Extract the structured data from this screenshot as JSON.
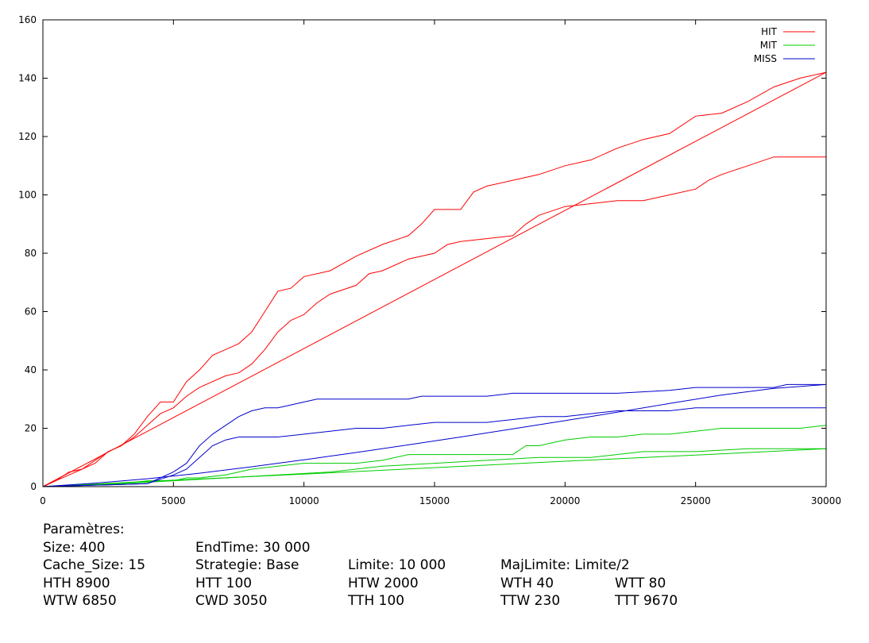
{
  "chart_data": {
    "type": "line",
    "title": "",
    "xlabel": "",
    "ylabel": "",
    "xlim": [
      0,
      30000
    ],
    "ylim": [
      0,
      160
    ],
    "xticks": [
      0,
      5000,
      10000,
      15000,
      20000,
      25000,
      30000
    ],
    "xtick_labels": [
      "0",
      "5000",
      "10000",
      "15000",
      "20000",
      "25000",
      "30000"
    ],
    "yticks": [
      0,
      20,
      40,
      60,
      80,
      100,
      120,
      140,
      160
    ],
    "ytick_labels": [
      "0",
      "20",
      "40",
      "60",
      "80",
      "100",
      "120",
      "140",
      "160"
    ],
    "grid": false,
    "legend_position": "top-right",
    "series": [
      {
        "name": "HIT",
        "color": "#ff0000",
        "label_shown": true,
        "points": [
          [
            0,
            0
          ],
          [
            500,
            2
          ],
          [
            1000,
            5
          ],
          [
            1500,
            6
          ],
          [
            2000,
            8
          ],
          [
            2500,
            12
          ],
          [
            3000,
            14
          ],
          [
            3500,
            18
          ],
          [
            4000,
            24
          ],
          [
            4500,
            29
          ],
          [
            5000,
            29
          ],
          [
            5500,
            36
          ],
          [
            6000,
            40
          ],
          [
            6500,
            45
          ],
          [
            7000,
            47
          ],
          [
            7500,
            49
          ],
          [
            8000,
            53
          ],
          [
            8500,
            60
          ],
          [
            9000,
            67
          ],
          [
            9500,
            68
          ],
          [
            10000,
            72
          ],
          [
            11000,
            74
          ],
          [
            12000,
            79
          ],
          [
            13000,
            83
          ],
          [
            14000,
            86
          ],
          [
            14500,
            90
          ],
          [
            15000,
            95
          ],
          [
            16000,
            95
          ],
          [
            16500,
            101
          ],
          [
            17000,
            103
          ],
          [
            18000,
            105
          ],
          [
            19000,
            107
          ],
          [
            20000,
            110
          ],
          [
            21000,
            112
          ],
          [
            22000,
            116
          ],
          [
            23000,
            119
          ],
          [
            24000,
            121
          ],
          [
            25000,
            127
          ],
          [
            26000,
            128
          ],
          [
            27000,
            132
          ],
          [
            28000,
            137
          ],
          [
            29000,
            140
          ],
          [
            30000,
            142
          ]
        ]
      },
      {
        "name": "",
        "color": "#ff0000",
        "label_shown": false,
        "points": [
          [
            0,
            0
          ],
          [
            500,
            2
          ],
          [
            1000,
            4
          ],
          [
            1500,
            6
          ],
          [
            2000,
            9
          ],
          [
            2500,
            12
          ],
          [
            3000,
            14
          ],
          [
            3500,
            17
          ],
          [
            4000,
            21
          ],
          [
            4500,
            25
          ],
          [
            5000,
            27
          ],
          [
            5500,
            31
          ],
          [
            6000,
            34
          ],
          [
            6500,
            36
          ],
          [
            7000,
            38
          ],
          [
            7500,
            39
          ],
          [
            8000,
            42
          ],
          [
            8500,
            47
          ],
          [
            9000,
            53
          ],
          [
            9500,
            57
          ],
          [
            10000,
            59
          ],
          [
            10500,
            63
          ],
          [
            11000,
            66
          ],
          [
            12000,
            69
          ],
          [
            12500,
            73
          ],
          [
            13000,
            74
          ],
          [
            14000,
            78
          ],
          [
            15000,
            80
          ],
          [
            15500,
            83
          ],
          [
            16000,
            84
          ],
          [
            17000,
            85
          ],
          [
            18000,
            86
          ],
          [
            18500,
            90
          ],
          [
            19000,
            93
          ],
          [
            20000,
            96
          ],
          [
            21000,
            97
          ],
          [
            22000,
            98
          ],
          [
            23000,
            98
          ],
          [
            24000,
            100
          ],
          [
            25000,
            102
          ],
          [
            25500,
            105
          ],
          [
            26000,
            107
          ],
          [
            27000,
            110
          ],
          [
            28000,
            113
          ],
          [
            30000,
            113
          ]
        ]
      },
      {
        "name": "",
        "color": "#ff0000",
        "label_shown": false,
        "points": [
          [
            0,
            0
          ],
          [
            30000,
            142
          ]
        ]
      },
      {
        "name": "MIT",
        "color": "#00cc00",
        "label_shown": true,
        "points": [
          [
            0,
            0
          ],
          [
            3000,
            1
          ],
          [
            4000,
            2
          ],
          [
            5000,
            2
          ],
          [
            5500,
            3
          ],
          [
            6000,
            3
          ],
          [
            7000,
            4
          ],
          [
            8000,
            6
          ],
          [
            9000,
            7
          ],
          [
            10000,
            8
          ],
          [
            11000,
            8
          ],
          [
            12000,
            8
          ],
          [
            13000,
            9
          ],
          [
            14000,
            11
          ],
          [
            15000,
            11
          ],
          [
            16000,
            11
          ],
          [
            17000,
            11
          ],
          [
            18000,
            11
          ],
          [
            18500,
            14
          ],
          [
            19000,
            14
          ],
          [
            20000,
            16
          ],
          [
            21000,
            17
          ],
          [
            22000,
            17
          ],
          [
            23000,
            18
          ],
          [
            24000,
            18
          ],
          [
            25000,
            19
          ],
          [
            26000,
            20
          ],
          [
            27000,
            20
          ],
          [
            28000,
            20
          ],
          [
            29000,
            20
          ],
          [
            30000,
            21
          ]
        ]
      },
      {
        "name": "",
        "color": "#00cc00",
        "label_shown": false,
        "points": [
          [
            0,
            0
          ],
          [
            3000,
            1
          ],
          [
            5000,
            2
          ],
          [
            7000,
            3
          ],
          [
            9000,
            4
          ],
          [
            11000,
            5
          ],
          [
            13000,
            7
          ],
          [
            15000,
            8
          ],
          [
            17000,
            9
          ],
          [
            19000,
            10
          ],
          [
            21000,
            10
          ],
          [
            23000,
            12
          ],
          [
            25000,
            12
          ],
          [
            27000,
            13
          ],
          [
            30000,
            13
          ]
        ]
      },
      {
        "name": "",
        "color": "#00cc00",
        "label_shown": false,
        "points": [
          [
            0,
            0
          ],
          [
            5000,
            2.2
          ],
          [
            10000,
            4.3
          ],
          [
            15000,
            6.5
          ],
          [
            20000,
            8.7
          ],
          [
            25000,
            10.8
          ],
          [
            30000,
            13
          ]
        ]
      },
      {
        "name": "MISS",
        "color": "#0000cc",
        "label_shown": true,
        "points": [
          [
            0,
            0
          ],
          [
            4000,
            1
          ],
          [
            4500,
            3
          ],
          [
            5000,
            5
          ],
          [
            5500,
            8
          ],
          [
            6000,
            14
          ],
          [
            6500,
            18
          ],
          [
            7000,
            21
          ],
          [
            7500,
            24
          ],
          [
            8000,
            26
          ],
          [
            8500,
            27
          ],
          [
            9000,
            27
          ],
          [
            9500,
            28
          ],
          [
            10000,
            29
          ],
          [
            10500,
            30
          ],
          [
            12000,
            30
          ],
          [
            13000,
            30
          ],
          [
            14000,
            30
          ],
          [
            14500,
            31
          ],
          [
            16000,
            31
          ],
          [
            17000,
            31
          ],
          [
            18000,
            32
          ],
          [
            20000,
            32
          ],
          [
            22000,
            32
          ],
          [
            24000,
            33
          ],
          [
            25000,
            34
          ],
          [
            26000,
            34
          ],
          [
            28000,
            34
          ],
          [
            28500,
            35
          ],
          [
            30000,
            35
          ]
        ]
      },
      {
        "name": "",
        "color": "#0000cc",
        "label_shown": false,
        "points": [
          [
            0,
            0
          ],
          [
            4000,
            1
          ],
          [
            5000,
            4
          ],
          [
            5500,
            6
          ],
          [
            6000,
            10
          ],
          [
            6500,
            14
          ],
          [
            7000,
            16
          ],
          [
            7500,
            17
          ],
          [
            8000,
            17
          ],
          [
            9000,
            17
          ],
          [
            10000,
            18
          ],
          [
            11000,
            19
          ],
          [
            12000,
            20
          ],
          [
            13000,
            20
          ],
          [
            14000,
            21
          ],
          [
            15000,
            22
          ],
          [
            16000,
            22
          ],
          [
            17000,
            22
          ],
          [
            18000,
            23
          ],
          [
            19000,
            24
          ],
          [
            20000,
            24
          ],
          [
            21000,
            25
          ],
          [
            22000,
            26
          ],
          [
            23000,
            26
          ],
          [
            24000,
            26
          ],
          [
            25000,
            27
          ],
          [
            26000,
            27
          ],
          [
            27000,
            27
          ],
          [
            28000,
            27
          ],
          [
            30000,
            27
          ]
        ]
      },
      {
        "name": "",
        "color": "#0000cc",
        "label_shown": false,
        "points": [
          [
            0,
            0
          ],
          [
            2000,
            1.2
          ],
          [
            4000,
            2.7
          ],
          [
            6000,
            4.6
          ],
          [
            8000,
            6.8
          ],
          [
            10000,
            9.2
          ],
          [
            12000,
            11.7
          ],
          [
            14000,
            14.3
          ],
          [
            16000,
            17
          ],
          [
            18000,
            19.8
          ],
          [
            20000,
            22.6
          ],
          [
            22000,
            25.5
          ],
          [
            24000,
            28.5
          ],
          [
            26000,
            31.4
          ],
          [
            28000,
            33.7
          ],
          [
            30000,
            35
          ]
        ]
      }
    ]
  },
  "params": {
    "header": "Paramètres:",
    "rows": [
      [
        "Size: 400",
        "EndTime: 30 000",
        "",
        "",
        ""
      ],
      [
        "Cache_Size: 15",
        "Strategie: Base",
        "Limite: 10 000",
        "MajLimite: Limite/2",
        ""
      ],
      [
        "HTH 8900",
        "HTT 100",
        "HTW 2000",
        "WTH 40",
        "WTT 80"
      ],
      [
        "WTW 6850",
        "CWD 3050",
        "TTH 100",
        "TTW 230",
        "TTT 9670"
      ]
    ]
  }
}
